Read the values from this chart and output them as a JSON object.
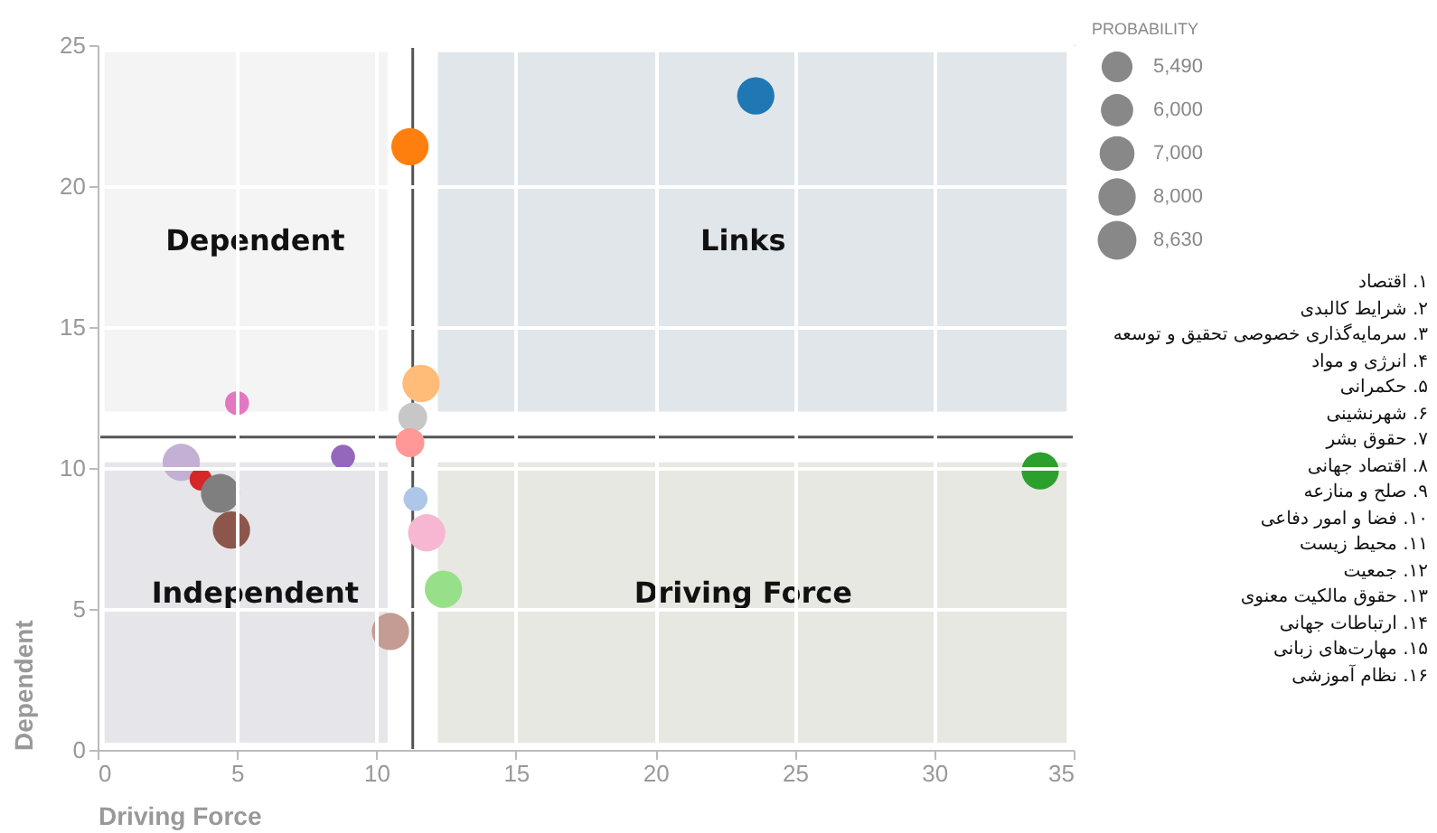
{
  "chart_data": {
    "type": "bubble",
    "xlabel": "Driving Force",
    "ylabel": "Dependent",
    "legend_title": "PROBABILITY",
    "x": [
      23.6,
      11.2,
      11.6,
      11.3,
      11.2,
      5.0,
      8.8,
      3.0,
      3.7,
      4.4,
      4.8,
      11.4,
      11.8,
      12.4,
      10.5,
      33.8
    ],
    "values": [
      23.2,
      21.4,
      13.0,
      11.8,
      10.9,
      12.3,
      10.4,
      10.2,
      9.6,
      9.1,
      7.8,
      8.9,
      7.7,
      5.7,
      4.2,
      9.9
    ],
    "sizes": [
      8000,
      8000,
      8000,
      4800,
      4800,
      3300,
      3300,
      8000,
      2900,
      8630,
      8000,
      3300,
      8000,
      8000,
      8000,
      8000
    ],
    "colors": [
      "#1f77b4",
      "#ff7f0e",
      "#ffbb78",
      "#c7c7c7",
      "#ff9896",
      "#e377c2",
      "#9467bd",
      "#c5b0d5",
      "#d62728",
      "#7f7f7f",
      "#8c564b",
      "#aec7e8",
      "#f7b6d2",
      "#98df8a",
      "#c49c94",
      "#2ca02c"
    ],
    "size_legend": [
      {
        "value": 5490,
        "label": "5,490"
      },
      {
        "value": 6000,
        "label": "6,000"
      },
      {
        "value": 7000,
        "label": "7,000"
      },
      {
        "value": 8000,
        "label": "8,000"
      },
      {
        "value": 8630,
        "label": "8,630"
      }
    ],
    "xlim": [
      0,
      35
    ],
    "xticks": [
      0,
      5,
      10,
      15,
      20,
      25,
      30,
      35
    ],
    "ylim": [
      0,
      25
    ],
    "yticks": [
      0,
      5,
      10,
      15,
      20,
      25
    ],
    "grid": true,
    "ref_lines": [
      {
        "axis": "x",
        "value": 11.3,
        "color": "#555555"
      },
      {
        "axis": "y",
        "value": 11.1,
        "color": "#555555"
      }
    ],
    "annotations": [
      "Dependent",
      "Links",
      "Independent",
      "Driving Force",
      "۱. اقتصاد",
      "۲. شرایط کالبدی",
      "۳. سرمایه‌گذاری خصوصی تحقیق و توسعه",
      "۴. انرژی و مواد",
      "۵. حکمرانی",
      "۶. شهرنشینی",
      "۷. حقوق بشر",
      "۸. اقتصاد جهانی",
      "۹. صلح و منازعه",
      "۱۰. فضا و امور دفاعی",
      "۱۱. محیط زیست",
      "۱۲. جمعیت",
      "۱۳. حقوق مالکیت معنوی",
      "۱۴. ارتباطات جهانی",
      "۱۵. مهارت‌های زبانی",
      "۱۶. نظام آموزشی"
    ]
  }
}
